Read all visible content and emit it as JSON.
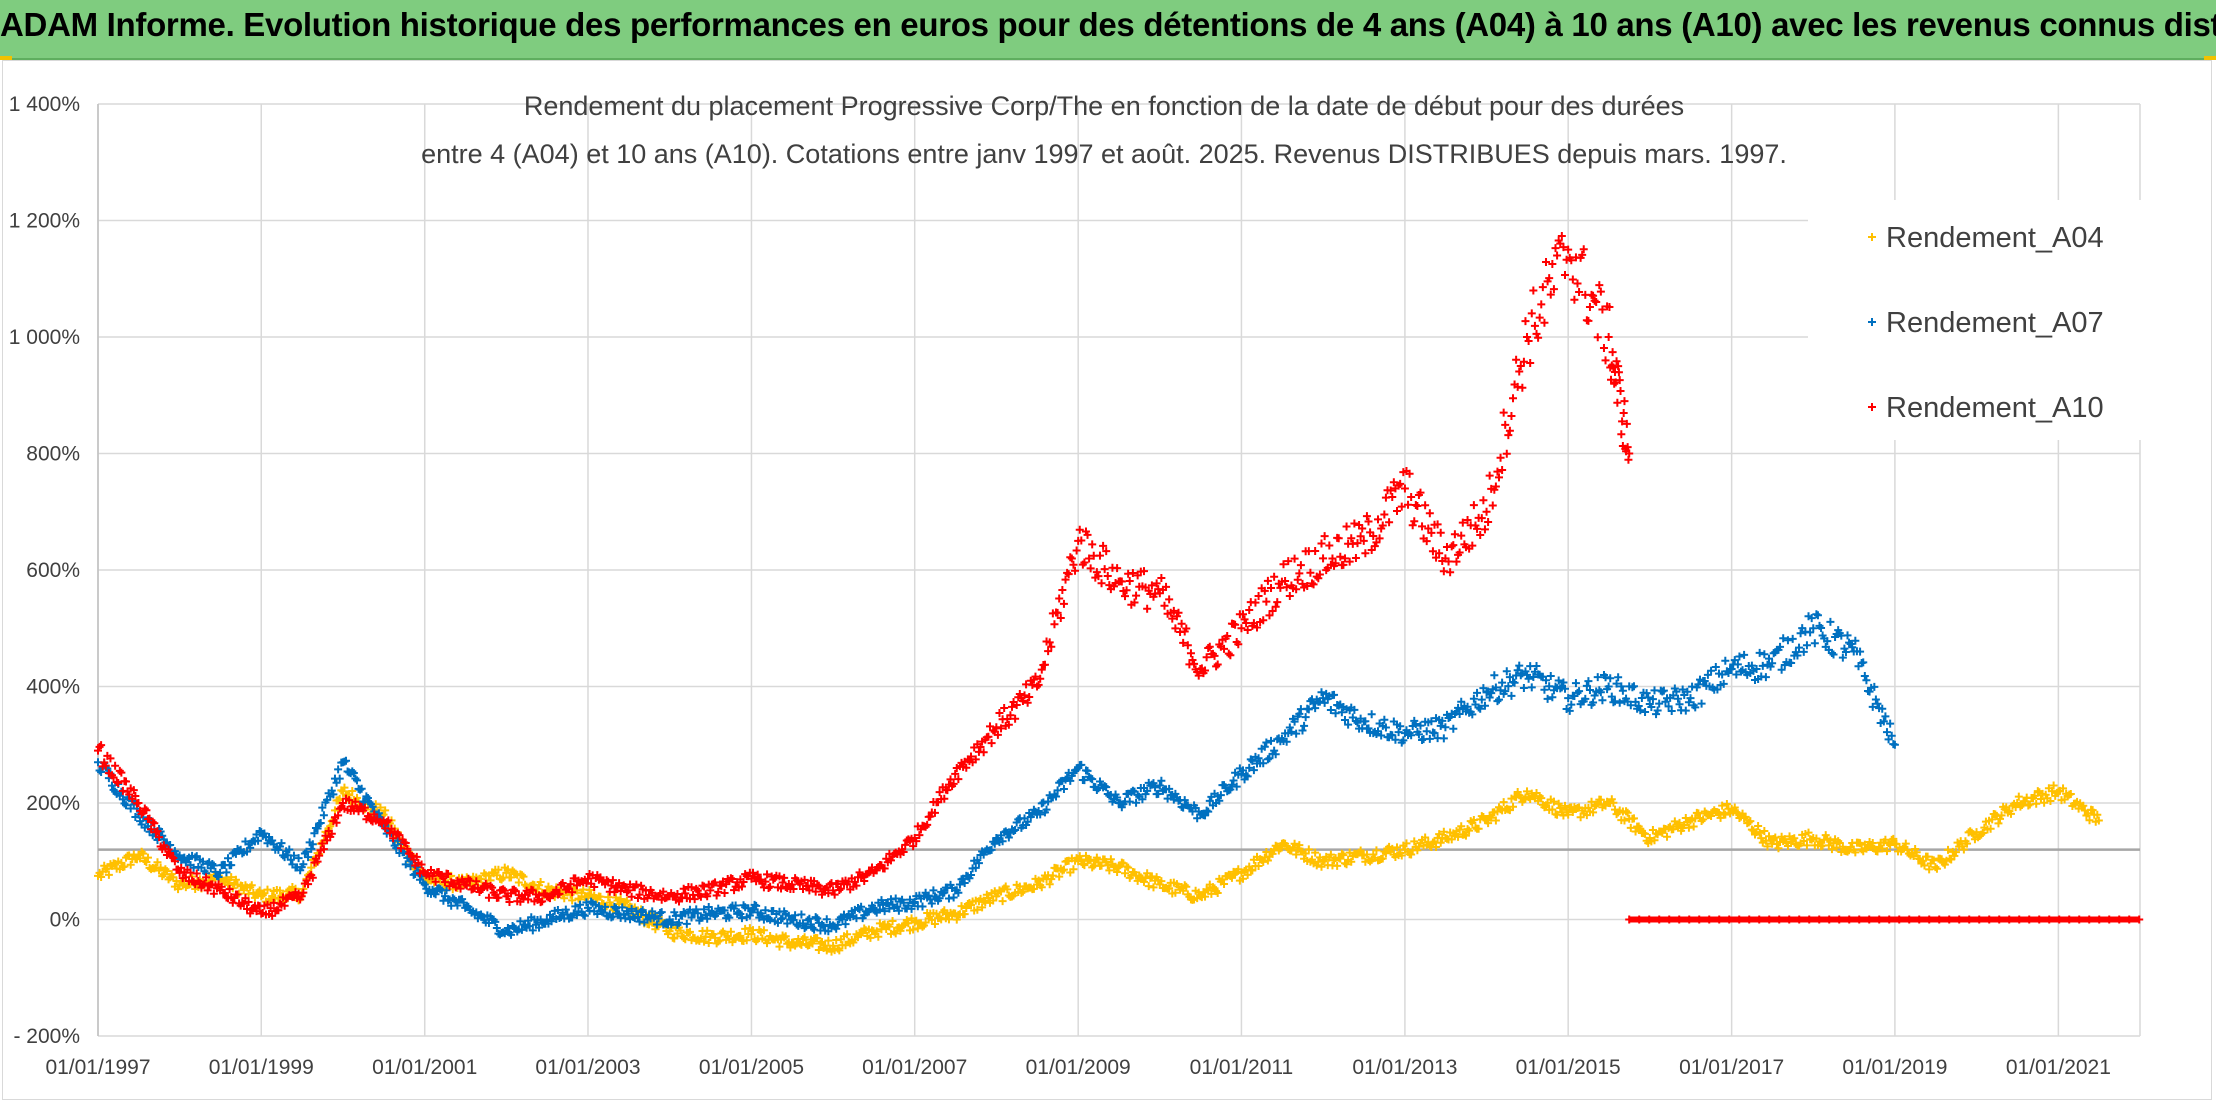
{
  "banner": {
    "title": "ADAM Informe. Evolution historique des performances en euros pour des détentions de 4 ans (A04) à 10 ans (A10) avec les revenus connus distribués",
    "background_color": "#7fcc7f"
  },
  "chart_data": {
    "type": "scatter",
    "title_line1": "Rendement du placement Progressive Corp/The en fonction de la date de début pour des durées",
    "title_line2": "entre 4 (A04) et 10 ans (A10). Cotations entre janv 1997 et août. 2025. Revenus DISTRIBUES depuis mars. 1997.",
    "x_type": "date",
    "xlim": [
      "1997-01-01",
      "2022-01-01"
    ],
    "ylim": [
      -200,
      1400
    ],
    "y_unit": "%",
    "x_tick_labels": [
      "01/01/1997",
      "01/01/1999",
      "01/01/2001",
      "01/01/2003",
      "01/01/2005",
      "01/01/2007",
      "01/01/2009",
      "01/01/2011",
      "01/01/2013",
      "01/01/2015",
      "01/01/2017",
      "01/01/2019",
      "01/01/2021"
    ],
    "y_tick_values": [
      -200,
      0,
      200,
      400,
      600,
      800,
      1000,
      1200,
      1400
    ],
    "y_tick_labels": [
      "- 200%",
      "0%",
      "200%",
      "400%",
      "600%",
      "800%",
      "1 000%",
      "1 200%",
      "1 400%"
    ],
    "reference_line_value": 120,
    "grid": true,
    "legend_position": "top-right",
    "marker": "+",
    "series": [
      {
        "name": "Rendement_A04",
        "color": "#ffc000",
        "points": [
          [
            "1997-01-01",
            75
          ],
          [
            "1997-07-01",
            110
          ],
          [
            "1998-01-01",
            60
          ],
          [
            "1998-07-01",
            70
          ],
          [
            "1999-01-01",
            40
          ],
          [
            "1999-07-01",
            45
          ],
          [
            "2000-01-01",
            220
          ],
          [
            "2000-07-01",
            180
          ],
          [
            "2001-01-01",
            70
          ],
          [
            "2001-07-01",
            60
          ],
          [
            "2002-01-01",
            80
          ],
          [
            "2002-07-01",
            50
          ],
          [
            "2003-01-01",
            40
          ],
          [
            "2003-07-01",
            20
          ],
          [
            "2004-01-01",
            -20
          ],
          [
            "2004-07-01",
            -30
          ],
          [
            "2005-01-01",
            -25
          ],
          [
            "2005-07-01",
            -40
          ],
          [
            "2006-01-01",
            -45
          ],
          [
            "2006-07-01",
            -20
          ],
          [
            "2007-01-01",
            -5
          ],
          [
            "2007-07-01",
            10
          ],
          [
            "2008-01-01",
            40
          ],
          [
            "2008-07-01",
            60
          ],
          [
            "2009-01-01",
            100
          ],
          [
            "2009-07-01",
            90
          ],
          [
            "2010-01-01",
            60
          ],
          [
            "2010-07-01",
            40
          ],
          [
            "2011-01-01",
            80
          ],
          [
            "2011-07-01",
            130
          ],
          [
            "2012-01-01",
            100
          ],
          [
            "2012-07-01",
            110
          ],
          [
            "2013-01-01",
            120
          ],
          [
            "2013-07-01",
            140
          ],
          [
            "2014-01-01",
            170
          ],
          [
            "2014-07-01",
            220
          ],
          [
            "2015-01-01",
            180
          ],
          [
            "2015-07-01",
            200
          ],
          [
            "2016-01-01",
            140
          ],
          [
            "2016-07-01",
            170
          ],
          [
            "2017-01-01",
            190
          ],
          [
            "2017-07-01",
            130
          ],
          [
            "2018-01-01",
            140
          ],
          [
            "2018-07-01",
            120
          ],
          [
            "2019-01-01",
            130
          ],
          [
            "2019-07-01",
            90
          ],
          [
            "2020-01-01",
            150
          ],
          [
            "2020-07-01",
            200
          ],
          [
            "2021-01-01",
            220
          ],
          [
            "2021-07-01",
            170
          ]
        ]
      },
      {
        "name": "Rendement_A07",
        "color": "#0070c0",
        "points": [
          [
            "1997-01-01",
            270
          ],
          [
            "1997-07-01",
            180
          ],
          [
            "1998-01-01",
            110
          ],
          [
            "1998-07-01",
            80
          ],
          [
            "1999-01-01",
            150
          ],
          [
            "1999-07-01",
            90
          ],
          [
            "2000-01-01",
            270
          ],
          [
            "2000-07-01",
            160
          ],
          [
            "2001-01-01",
            60
          ],
          [
            "2001-07-01",
            20
          ],
          [
            "2002-01-01",
            -20
          ],
          [
            "2002-07-01",
            0
          ],
          [
            "2003-01-01",
            20
          ],
          [
            "2003-07-01",
            10
          ],
          [
            "2004-01-01",
            0
          ],
          [
            "2004-07-01",
            10
          ],
          [
            "2005-01-01",
            15
          ],
          [
            "2005-07-01",
            0
          ],
          [
            "2006-01-01",
            -10
          ],
          [
            "2006-07-01",
            20
          ],
          [
            "2007-01-01",
            30
          ],
          [
            "2007-07-01",
            50
          ],
          [
            "2008-01-01",
            140
          ],
          [
            "2008-07-01",
            180
          ],
          [
            "2009-01-01",
            260
          ],
          [
            "2009-07-01",
            200
          ],
          [
            "2010-01-01",
            230
          ],
          [
            "2010-07-01",
            180
          ],
          [
            "2011-01-01",
            250
          ],
          [
            "2011-07-01",
            310
          ],
          [
            "2012-01-01",
            380
          ],
          [
            "2012-07-01",
            340
          ],
          [
            "2013-01-01",
            320
          ],
          [
            "2013-07-01",
            330
          ],
          [
            "2014-01-01",
            390
          ],
          [
            "2014-07-01",
            420
          ],
          [
            "2015-01-01",
            380
          ],
          [
            "2015-07-01",
            400
          ],
          [
            "2016-01-01",
            370
          ],
          [
            "2016-07-01",
            380
          ],
          [
            "2017-01-01",
            430
          ],
          [
            "2017-07-01",
            440
          ],
          [
            "2018-01-01",
            500
          ],
          [
            "2018-07-01",
            460
          ],
          [
            "2019-01-01",
            300
          ]
        ]
      },
      {
        "name": "Rendement_A10",
        "color": "#ff0000",
        "points": [
          [
            "1997-01-01",
            290
          ],
          [
            "1997-07-01",
            200
          ],
          [
            "1998-01-01",
            80
          ],
          [
            "1998-07-01",
            50
          ],
          [
            "1999-01-01",
            10
          ],
          [
            "1999-07-01",
            40
          ],
          [
            "2000-01-01",
            200
          ],
          [
            "2000-07-01",
            170
          ],
          [
            "2001-01-01",
            80
          ],
          [
            "2001-07-01",
            60
          ],
          [
            "2002-01-01",
            40
          ],
          [
            "2002-07-01",
            40
          ],
          [
            "2003-01-01",
            70
          ],
          [
            "2003-07-01",
            50
          ],
          [
            "2004-01-01",
            40
          ],
          [
            "2004-07-01",
            50
          ],
          [
            "2005-01-01",
            70
          ],
          [
            "2005-07-01",
            60
          ],
          [
            "2006-01-01",
            50
          ],
          [
            "2006-07-01",
            80
          ],
          [
            "2007-01-01",
            140
          ],
          [
            "2007-07-01",
            250
          ],
          [
            "2008-01-01",
            330
          ],
          [
            "2008-07-01",
            400
          ],
          [
            "2009-01-01",
            650
          ],
          [
            "2009-07-01",
            580
          ],
          [
            "2010-01-01",
            560
          ],
          [
            "2010-07-01",
            430
          ],
          [
            "2011-01-01",
            500
          ],
          [
            "2011-07-01",
            580
          ],
          [
            "2012-01-01",
            620
          ],
          [
            "2012-07-01",
            650
          ],
          [
            "2013-01-01",
            740
          ],
          [
            "2013-07-01",
            620
          ],
          [
            "2014-01-01",
            700
          ],
          [
            "2014-07-01",
            1000
          ],
          [
            "2015-01-01",
            1150
          ],
          [
            "2015-07-01",
            1000
          ],
          [
            "2015-10-01",
            800
          ]
        ],
        "zero_segment": [
          "2015-10-01",
          "2022-01-01"
        ]
      }
    ]
  }
}
